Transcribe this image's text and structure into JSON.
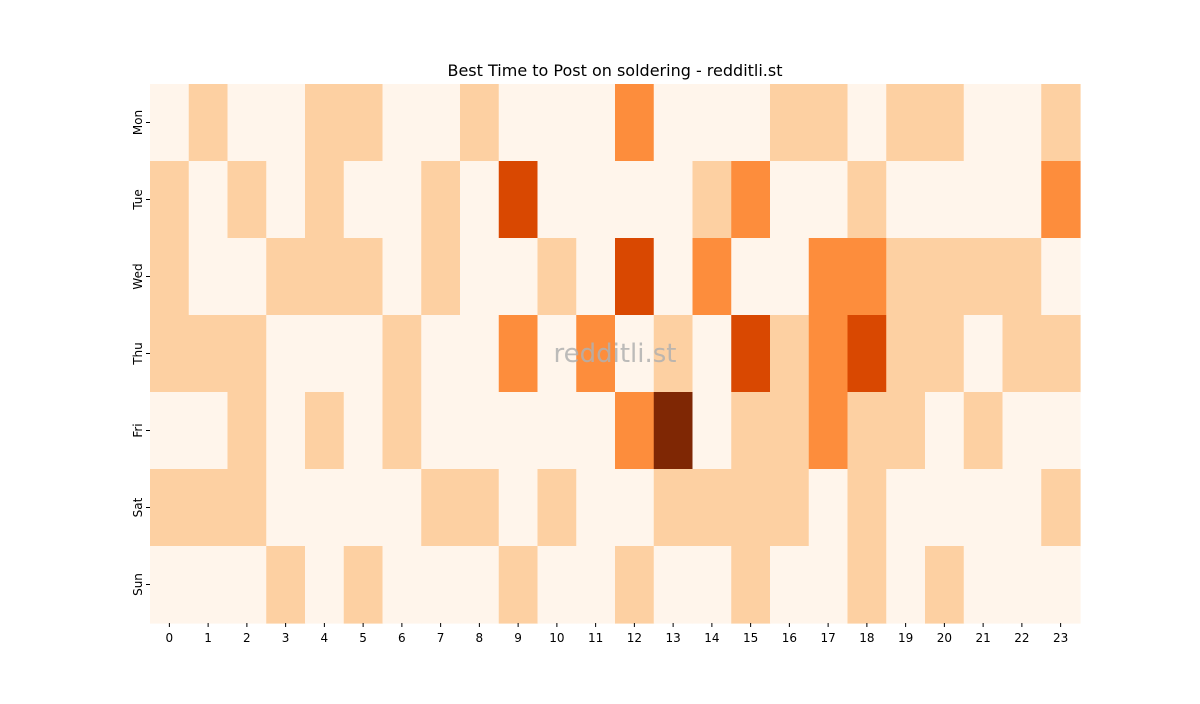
{
  "chart_data": {
    "type": "heatmap",
    "title": "Best Time to Post on soldering - redditli.st",
    "watermark": "redditli.st",
    "x_categories": [
      "0",
      "1",
      "2",
      "3",
      "4",
      "5",
      "6",
      "7",
      "8",
      "9",
      "10",
      "11",
      "12",
      "13",
      "14",
      "15",
      "16",
      "17",
      "18",
      "19",
      "20",
      "21",
      "22",
      "23"
    ],
    "y_categories": [
      "Mon",
      "Tue",
      "Wed",
      "Thu",
      "Fri",
      "Sat",
      "Sun"
    ],
    "values": [
      [
        0,
        1,
        0,
        0,
        1,
        1,
        0,
        0,
        1,
        0,
        0,
        0,
        2,
        0,
        0,
        0,
        1,
        1,
        0,
        1,
        1,
        0,
        0,
        1
      ],
      [
        1,
        0,
        1,
        0,
        1,
        0,
        0,
        1,
        0,
        3,
        0,
        0,
        0,
        0,
        1,
        2,
        0,
        0,
        1,
        0,
        0,
        0,
        0,
        2
      ],
      [
        1,
        0,
        0,
        1,
        1,
        1,
        0,
        1,
        0,
        0,
        1,
        0,
        3,
        0,
        2,
        0,
        0,
        2,
        2,
        1,
        1,
        1,
        1,
        0
      ],
      [
        1,
        1,
        1,
        0,
        0,
        0,
        1,
        0,
        0,
        2,
        0,
        2,
        0,
        1,
        0,
        3,
        1,
        2,
        3,
        1,
        1,
        0,
        1,
        1
      ],
      [
        0,
        0,
        1,
        0,
        1,
        0,
        1,
        0,
        0,
        0,
        0,
        0,
        2,
        4,
        0,
        1,
        1,
        2,
        1,
        1,
        0,
        1,
        0,
        0
      ],
      [
        1,
        1,
        1,
        0,
        0,
        0,
        0,
        1,
        1,
        0,
        1,
        0,
        0,
        1,
        1,
        1,
        1,
        0,
        1,
        0,
        0,
        0,
        0,
        1
      ],
      [
        0,
        0,
        0,
        1,
        0,
        1,
        0,
        0,
        0,
        1,
        0,
        0,
        1,
        0,
        0,
        1,
        0,
        0,
        1,
        0,
        1,
        0,
        0,
        0
      ]
    ],
    "value_range": [
      0,
      4
    ],
    "colorscale": [
      "#fff5eb",
      "#fdd0a2",
      "#fd8d3c",
      "#d94801",
      "#7f2704"
    ],
    "xlabel": "",
    "ylabel": "",
    "grid": false,
    "legend": "none"
  }
}
